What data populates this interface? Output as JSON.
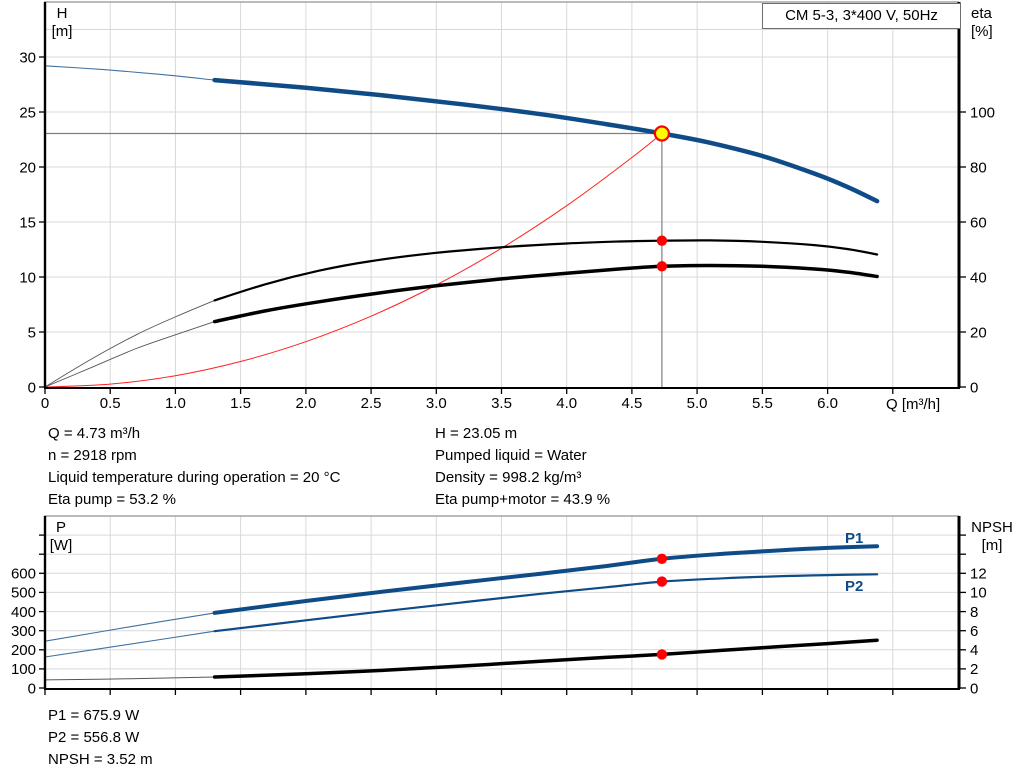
{
  "title_box": {
    "label": "CM 5-3, 3*400 V, 50Hz"
  },
  "labels": {
    "h": "H",
    "h_unit": "[m]",
    "eta": "eta",
    "eta_unit": "[%]",
    "q": "Q [m³/h]",
    "p": "P",
    "p_unit": "[W]",
    "npsh": "NPSH",
    "npsh_unit": "[m]",
    "p1": "P1",
    "p2": "P2"
  },
  "info_top_left": [
    "Q = 4.73 m³/h",
    "n = 2918 rpm",
    "Liquid temperature during operation = 20 °C",
    "Eta pump = 53.2 %"
  ],
  "info_top_right": [
    "H = 23.05 m",
    "Pumped liquid = Water",
    "Density = 998.2 kg/m³",
    "Eta pump+motor = 43.9 %"
  ],
  "info_bottom": [
    "P1 = 675.9 W",
    "P2 = 556.8 W",
    "NPSH = 3.52 m"
  ],
  "colors": {
    "curve_blue": "#0f4b87",
    "curve_blue_thin": "#41719f",
    "curve_black": "#000000",
    "curve_black_thin": "#555555",
    "system_red": "#ff2020",
    "marker_red": "#ff0000",
    "duty_fill": "#ffff00",
    "grid": "#d9d9d9",
    "crosshair": "#7f7f7f",
    "frame_top": "#909090",
    "axis": "#000000"
  },
  "chart_data": [
    {
      "type": "line",
      "title": "CM 5-3, 3*400 V, 50Hz — QH / efficiency curves",
      "x_axis": {
        "label": "Q [m³/h]",
        "min": 0,
        "max": 7,
        "grid_step": 0.5,
        "show_labels": true,
        "tick_labels": [
          [
            0,
            "0"
          ],
          [
            0.5,
            "0.5"
          ],
          [
            1,
            "1.0"
          ],
          [
            1.5,
            "1.5"
          ],
          [
            2,
            "2.0"
          ],
          [
            2.5,
            "2.5"
          ],
          [
            3,
            "3.0"
          ],
          [
            3.5,
            "3.5"
          ],
          [
            4,
            "4.0"
          ],
          [
            4.5,
            "4.5"
          ],
          [
            5,
            "5.0"
          ],
          [
            5.5,
            "5.5"
          ],
          [
            6,
            "6.0"
          ]
        ]
      },
      "left_axis": {
        "label": "H [m]",
        "min": 0,
        "max": 35,
        "gridlines": [
          5,
          10,
          15,
          20,
          25,
          30,
          32.5
        ],
        "tick_labels": [
          [
            0,
            "0"
          ],
          [
            5,
            "5"
          ],
          [
            10,
            "10"
          ],
          [
            15,
            "15"
          ],
          [
            20,
            "20"
          ],
          [
            25,
            "25"
          ],
          [
            30,
            "30"
          ]
        ],
        "extra_ticks": []
      },
      "right_axis": {
        "label": "eta [%]",
        "min": 0,
        "max": 140,
        "tick_labels": [
          [
            0,
            "0"
          ],
          [
            20,
            "20"
          ],
          [
            40,
            "40"
          ],
          [
            60,
            "60"
          ],
          [
            80,
            "80"
          ],
          [
            100,
            "100"
          ]
        ],
        "extra_ticks": []
      },
      "series": [
        {
          "name": "qh-curve-lead",
          "axis": "left",
          "color": "curve_blue_thin",
          "width": 1.1,
          "points": [
            [
              0,
              29.2
            ],
            [
              0.45,
              28.85
            ],
            [
              0.9,
              28.4
            ],
            [
              1.3,
              27.9
            ]
          ]
        },
        {
          "name": "qh-curve",
          "axis": "left",
          "color": "curve_blue",
          "width": 4.5,
          "points": [
            [
              1.3,
              27.9
            ],
            [
              2.0,
              27.2
            ],
            [
              2.6,
              26.5
            ],
            [
              3.2,
              25.7
            ],
            [
              3.8,
              24.8
            ],
            [
              4.3,
              23.9
            ],
            [
              4.73,
              23.05
            ],
            [
              5.1,
              22.2
            ],
            [
              5.5,
              21.0
            ],
            [
              5.9,
              19.4
            ],
            [
              6.15,
              18.2
            ],
            [
              6.38,
              16.9
            ]
          ]
        },
        {
          "name": "system-curve",
          "axis": "left",
          "color": "system_red",
          "width": 1,
          "points": [
            [
              0,
              0
            ],
            [
              0.5,
              0.26
            ],
            [
              1,
              1.03
            ],
            [
              1.5,
              2.32
            ],
            [
              2,
              4.12
            ],
            [
              2.5,
              6.44
            ],
            [
              3,
              9.27
            ],
            [
              3.5,
              12.62
            ],
            [
              4,
              16.48
            ],
            [
              4.5,
              20.86
            ],
            [
              4.73,
              23.05
            ]
          ]
        },
        {
          "name": "eta-pump-curve-lead",
          "axis": "right",
          "color": "curve_black_thin",
          "width": 0.9,
          "points": [
            [
              0,
              0
            ],
            [
              0.35,
              10
            ],
            [
              0.7,
              19
            ],
            [
              1.0,
              25.5
            ],
            [
              1.3,
              31.5
            ]
          ]
        },
        {
          "name": "eta-pump-curve",
          "axis": "right",
          "color": "curve_black",
          "width": 2.2,
          "points": [
            [
              1.3,
              31.5
            ],
            [
              1.7,
              37.5
            ],
            [
              2.1,
              42.3
            ],
            [
              2.5,
              45.8
            ],
            [
              3.0,
              48.8
            ],
            [
              3.5,
              50.8
            ],
            [
              4.0,
              52.2
            ],
            [
              4.4,
              52.9
            ],
            [
              4.73,
              53.2
            ],
            [
              5.1,
              53.3
            ],
            [
              5.5,
              52.8
            ],
            [
              5.9,
              51.6
            ],
            [
              6.15,
              50.2
            ],
            [
              6.38,
              48.2
            ]
          ]
        },
        {
          "name": "eta-pump-motor-curve-lead",
          "axis": "right",
          "color": "curve_black_thin",
          "width": 0.9,
          "points": [
            [
              0,
              0
            ],
            [
              0.35,
              7
            ],
            [
              0.7,
              14
            ],
            [
              1.0,
              19
            ],
            [
              1.3,
              23.8
            ]
          ]
        },
        {
          "name": "eta-pump-motor-curve",
          "axis": "right",
          "color": "curve_black",
          "width": 3.5,
          "points": [
            [
              1.3,
              23.8
            ],
            [
              1.7,
              27.8
            ],
            [
              2.1,
              31.0
            ],
            [
              2.5,
              33.8
            ],
            [
              3.0,
              36.8
            ],
            [
              3.5,
              39.3
            ],
            [
              4.0,
              41.4
            ],
            [
              4.4,
              42.9
            ],
            [
              4.73,
              43.9
            ],
            [
              5.1,
              44.2
            ],
            [
              5.5,
              43.9
            ],
            [
              5.9,
              42.9
            ],
            [
              6.15,
              41.8
            ],
            [
              6.38,
              40.2
            ]
          ]
        }
      ],
      "crosshair": {
        "q": 4.73,
        "value": 23.05,
        "axis": "left"
      },
      "duty_point": {
        "q": 4.73,
        "h": 23.05
      },
      "markers": [
        {
          "name": "eta-pump-marker",
          "axis": "right",
          "q": 4.73,
          "value": 53.2
        },
        {
          "name": "eta-pump-motor-marker",
          "axis": "right",
          "q": 4.73,
          "value": 43.9
        }
      ]
    },
    {
      "type": "line",
      "title": "Power and NPSH curves",
      "x_axis": {
        "label": "",
        "min": 0,
        "max": 7,
        "grid_step": 0.5,
        "show_labels": false,
        "tick_labels": []
      },
      "left_axis": {
        "label": "P [W]",
        "min": 0,
        "max": 900,
        "gridlines": [
          100,
          200,
          300,
          400,
          500,
          600,
          700,
          800
        ],
        "tick_labels": [
          [
            0,
            "0"
          ],
          [
            100,
            "100"
          ],
          [
            200,
            "200"
          ],
          [
            300,
            "300"
          ],
          [
            400,
            "400"
          ],
          [
            500,
            "500"
          ],
          [
            600,
            "600"
          ]
        ],
        "extra_ticks": [
          700,
          800
        ]
      },
      "right_axis": {
        "label": "NPSH [m]",
        "min": 0,
        "max": 18,
        "tick_labels": [
          [
            0,
            "0"
          ],
          [
            2,
            "2"
          ],
          [
            4,
            "4"
          ],
          [
            6,
            "6"
          ],
          [
            8,
            "8"
          ],
          [
            10,
            "10"
          ],
          [
            12,
            "12"
          ]
        ],
        "extra_ticks": [
          14,
          16
        ]
      },
      "series": [
        {
          "name": "p1-curve-lead",
          "axis": "left",
          "color": "curve_blue_thin",
          "width": 1.1,
          "points": [
            [
              0,
              245
            ],
            [
              0.65,
              320
            ],
            [
              1.3,
              393
            ]
          ]
        },
        {
          "name": "p1-curve",
          "axis": "left",
          "color": "curve_blue",
          "width": 4,
          "points": [
            [
              1.3,
              393
            ],
            [
              2.0,
              455
            ],
            [
              2.6,
              505
            ],
            [
              3.2,
              552
            ],
            [
              3.8,
              598
            ],
            [
              4.3,
              638
            ],
            [
              4.73,
              675.9
            ],
            [
              5.2,
              702
            ],
            [
              5.6,
              719
            ],
            [
              6.0,
              733
            ],
            [
              6.38,
              742
            ]
          ]
        },
        {
          "name": "p2-curve-lead",
          "axis": "left",
          "color": "curve_blue_thin",
          "width": 1.1,
          "points": [
            [
              0,
              162
            ],
            [
              0.65,
              229
            ],
            [
              1.3,
              297
            ]
          ]
        },
        {
          "name": "p2-curve",
          "axis": "left",
          "color": "curve_blue",
          "width": 2.2,
          "points": [
            [
              1.3,
              297
            ],
            [
              2.0,
              354
            ],
            [
              2.6,
              402
            ],
            [
              3.2,
              448
            ],
            [
              3.8,
              493
            ],
            [
              4.3,
              527
            ],
            [
              4.73,
              556.8
            ],
            [
              5.2,
              574
            ],
            [
              5.6,
              584
            ],
            [
              6.0,
              591
            ],
            [
              6.38,
              595
            ]
          ]
        },
        {
          "name": "npsh-curve-lead",
          "axis": "right",
          "color": "curve_black_thin",
          "width": 1,
          "points": [
            [
              0,
              0.85
            ],
            [
              0.65,
              0.97
            ],
            [
              1.3,
              1.15
            ]
          ]
        },
        {
          "name": "npsh-curve",
          "axis": "right",
          "color": "curve_black",
          "width": 3.5,
          "points": [
            [
              1.3,
              1.15
            ],
            [
              2.0,
              1.5
            ],
            [
              2.6,
              1.85
            ],
            [
              3.2,
              2.3
            ],
            [
              3.8,
              2.8
            ],
            [
              4.3,
              3.2
            ],
            [
              4.73,
              3.52
            ],
            [
              5.2,
              3.95
            ],
            [
              5.6,
              4.3
            ],
            [
              6.0,
              4.65
            ],
            [
              6.38,
              5.0
            ]
          ]
        }
      ],
      "markers": [
        {
          "name": "p1-marker",
          "axis": "left",
          "q": 4.73,
          "value": 675.9
        },
        {
          "name": "p2-marker",
          "axis": "left",
          "q": 4.73,
          "value": 556.8
        },
        {
          "name": "npsh-marker",
          "axis": "right",
          "q": 4.73,
          "value": 3.52
        }
      ]
    }
  ]
}
